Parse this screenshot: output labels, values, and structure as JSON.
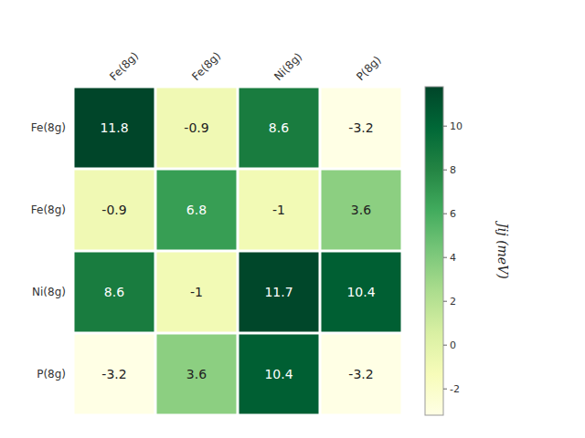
{
  "chart_data": {
    "type": "heatmap",
    "categories": [
      "Fe(8g)",
      "Fe(8g)",
      "Ni(8g)",
      "P(8g)"
    ],
    "y_categories": [
      "Fe(8g)",
      "Fe(8g)",
      "Ni(8g)",
      "P(8g)"
    ],
    "values": [
      [
        11.8,
        -0.9,
        8.6,
        -3.2
      ],
      [
        -0.9,
        6.8,
        -1.0,
        3.6
      ],
      [
        8.6,
        -1.0,
        11.7,
        10.4
      ],
      [
        -3.2,
        3.6,
        10.4,
        -3.2
      ]
    ],
    "zlim": [
      -3.2,
      11.8
    ],
    "zticks": [
      -2,
      0,
      2,
      4,
      6,
      8,
      10
    ],
    "colorbar_label": "Jij (meV)",
    "color": "YlGn",
    "data_labels": true
  }
}
